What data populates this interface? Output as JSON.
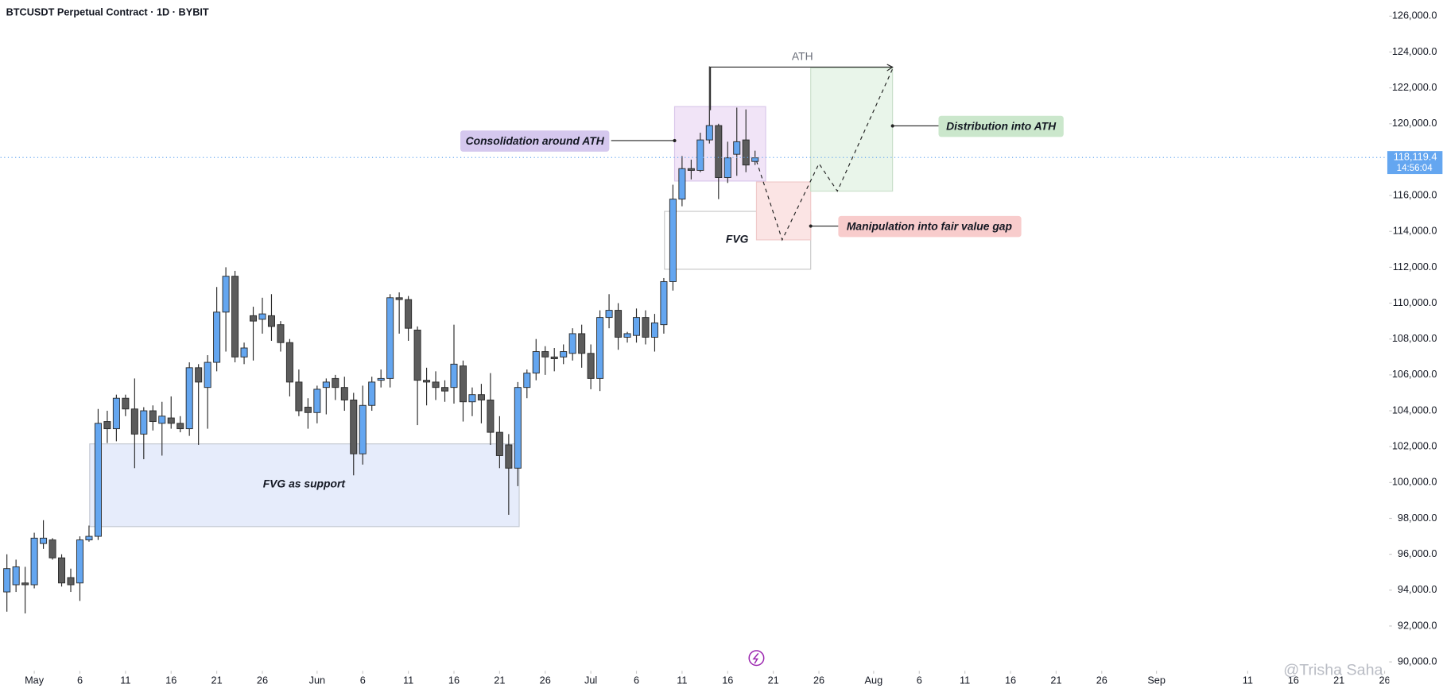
{
  "chart_data": {
    "type": "candlestick",
    "title": "BTCUSDT Perpetual Contract · 1D · BYBIT",
    "x": [
      -3,
      -2,
      -1,
      0,
      1,
      2,
      3,
      4,
      5,
      6,
      7,
      8,
      9,
      10,
      11,
      12,
      13,
      14,
      15,
      16,
      17,
      18,
      19,
      20,
      21,
      22,
      23,
      24,
      25,
      26,
      27,
      28,
      29,
      30,
      31,
      32,
      33,
      34,
      35,
      36,
      37,
      38,
      39,
      40,
      41,
      42,
      43,
      44,
      45,
      46,
      47,
      48,
      49,
      50,
      51,
      52,
      53,
      54,
      55,
      56,
      57,
      58,
      59,
      60,
      61,
      62,
      63,
      64,
      65,
      66,
      67,
      68,
      69,
      70,
      71,
      72,
      73,
      74,
      75,
      76,
      77,
      78,
      79
    ],
    "open": [
      93900,
      94300,
      94400,
      94300,
      96600,
      96800,
      95800,
      94700,
      94400,
      96800,
      97000,
      103400,
      103000,
      104700,
      104100,
      102700,
      104000,
      103300,
      103600,
      103300,
      103000,
      106400,
      105300,
      106700,
      109500,
      111500,
      107000,
      109300,
      109100,
      109300,
      108800,
      107800,
      105600,
      104200,
      103900,
      105300,
      105800,
      105300,
      104600,
      101600,
      104300,
      105700,
      105800,
      110300,
      110200,
      108500,
      105700,
      105600,
      105300,
      105300,
      106500,
      104500,
      104900,
      104600,
      102800,
      102100,
      100800,
      105300,
      106100,
      107300,
      107000,
      107000,
      107200,
      108300,
      107200,
      105800,
      109200,
      109600,
      108100,
      108200,
      109200,
      108100,
      108800,
      111200,
      115800,
      117500,
      117400,
      119100,
      119900,
      117000,
      118300,
      119100,
      117900
    ],
    "high": [
      96000,
      95700,
      95300,
      97200,
      97900,
      96900,
      96000,
      95200,
      97000,
      97600,
      104100,
      104000,
      104900,
      104900,
      105800,
      104200,
      104300,
      104500,
      104800,
      103700,
      106700,
      106600,
      107100,
      110900,
      112000,
      111800,
      107800,
      109800,
      110300,
      110500,
      109000,
      108000,
      106300,
      104700,
      105400,
      105800,
      106000,
      105900,
      105000,
      105400,
      105900,
      106300,
      110500,
      110600,
      110400,
      108700,
      106400,
      106200,
      105700,
      108800,
      106800,
      105300,
      105500,
      106100,
      103700,
      102700,
      105600,
      106300,
      108000,
      107600,
      107500,
      107700,
      108600,
      108800,
      107700,
      109600,
      110500,
      110000,
      108400,
      109700,
      109600,
      109400,
      111400,
      116600,
      118200,
      118000,
      119500,
      123200,
      120000,
      119000,
      120900,
      120800,
      118500
    ],
    "low": [
      92800,
      93900,
      92700,
      94100,
      96300,
      95700,
      94200,
      93900,
      93400,
      96700,
      96800,
      102200,
      102300,
      103700,
      100800,
      101300,
      102900,
      101500,
      103000,
      102800,
      102600,
      102100,
      103000,
      106200,
      107300,
      106700,
      106600,
      106800,
      108300,
      107900,
      107300,
      104800,
      103700,
      103000,
      103300,
      103800,
      104600,
      104000,
      100400,
      101000,
      104000,
      105300,
      105300,
      108300,
      107900,
      103200,
      104300,
      104600,
      104500,
      104400,
      103400,
      103700,
      103300,
      102100,
      100800,
      98200,
      99800,
      104700,
      105700,
      106000,
      106200,
      106600,
      106800,
      106400,
      105200,
      105100,
      108600,
      107400,
      107800,
      107800,
      107700,
      107300,
      108300,
      110700,
      115400,
      116900,
      117300,
      118900,
      115800,
      116700,
      117100,
      117300,
      117700
    ],
    "close": [
      95200,
      95300,
      94300,
      96900,
      96900,
      95800,
      94400,
      94300,
      96800,
      97000,
      103300,
      103000,
      104700,
      104100,
      102700,
      104000,
      103400,
      103700,
      103300,
      103000,
      106400,
      105600,
      106700,
      109500,
      111500,
      107000,
      107500,
      109000,
      109400,
      108700,
      107800,
      105600,
      104000,
      103900,
      105200,
      105600,
      105300,
      104600,
      101600,
      104300,
      105600,
      105800,
      110300,
      110200,
      108600,
      105700,
      105600,
      105300,
      105100,
      106600,
      104500,
      104900,
      104600,
      102800,
      101500,
      100800,
      105300,
      106100,
      107300,
      107000,
      106900,
      107300,
      108300,
      107200,
      105800,
      109200,
      109600,
      108100,
      108300,
      109200,
      108100,
      108900,
      111200,
      115800,
      117500,
      117400,
      119100,
      119900,
      117000,
      118100,
      119000,
      117700,
      118100
    ],
    "up_color": "#64a6f0",
    "down_color": "#5c5c5c",
    "border_color": "#2a2a2a",
    "xlim": [
      -3.7,
      148.5
    ],
    "xticks": [
      {
        "value": 0,
        "label": "May"
      },
      {
        "value": 5,
        "label": "6"
      },
      {
        "value": 10,
        "label": "11"
      },
      {
        "value": 15,
        "label": "16"
      },
      {
        "value": 20,
        "label": "21"
      },
      {
        "value": 25,
        "label": "26"
      },
      {
        "value": 31,
        "label": "Jun"
      },
      {
        "value": 36,
        "label": "6"
      },
      {
        "value": 41,
        "label": "11"
      },
      {
        "value": 46,
        "label": "16"
      },
      {
        "value": 51,
        "label": "21"
      },
      {
        "value": 56,
        "label": "26"
      },
      {
        "value": 61,
        "label": "Jul"
      },
      {
        "value": 66,
        "label": "6"
      },
      {
        "value": 71,
        "label": "11"
      },
      {
        "value": 76,
        "label": "16"
      },
      {
        "value": 81,
        "label": "21"
      },
      {
        "value": 86,
        "label": "26"
      },
      {
        "value": 92,
        "label": "Aug"
      },
      {
        "value": 97,
        "label": "6"
      },
      {
        "value": 102,
        "label": "11"
      },
      {
        "value": 107,
        "label": "16"
      },
      {
        "value": 112,
        "label": "21"
      },
      {
        "value": 117,
        "label": "26"
      },
      {
        "value": 123,
        "label": "Sep"
      },
      {
        "value": 133,
        "label": "11"
      },
      {
        "value": 138,
        "label": "16"
      },
      {
        "value": 143,
        "label": "21"
      },
      {
        "value": 148,
        "label": "26"
      }
    ],
    "ylim": [
      89500,
      126900
    ],
    "yticks": [
      {
        "value": 90000,
        "label": "90,000.0"
      },
      {
        "value": 92000,
        "label": "92,000.0"
      },
      {
        "value": 94000,
        "label": "94,000.0"
      },
      {
        "value": 96000,
        "label": "96,000.0"
      },
      {
        "value": 98000,
        "label": "98,000.0"
      },
      {
        "value": 100000,
        "label": "100,000.0"
      },
      {
        "value": 102000,
        "label": "102,000.0"
      },
      {
        "value": 104000,
        "label": "104,000.0"
      },
      {
        "value": 106000,
        "label": "106,000.0"
      },
      {
        "value": 108000,
        "label": "108,000.0"
      },
      {
        "value": 110000,
        "label": "110,000.0"
      },
      {
        "value": 112000,
        "label": "112,000.0"
      },
      {
        "value": 114000,
        "label": "114,000.0"
      },
      {
        "value": 116000,
        "label": "116,000.0"
      },
      {
        "value": 118000,
        "label": "118,000.0"
      },
      {
        "value": 120000,
        "label": "120,000.0"
      },
      {
        "value": 122000,
        "label": "122,000.0"
      },
      {
        "value": 124000,
        "label": "124,000.0"
      },
      {
        "value": 126000,
        "label": "126,000.0"
      }
    ],
    "grid": false,
    "last_price": {
      "value": 118119.4,
      "label": "118,119.4"
    },
    "countdown": "14:56:04",
    "annotations": [
      "ATH",
      "Consolidation around ATH",
      "Distribution into ATH",
      "FVG",
      "Manipulation into fair value gap",
      "FVG as support"
    ],
    "watermark": "@Trisha Saha"
  }
}
